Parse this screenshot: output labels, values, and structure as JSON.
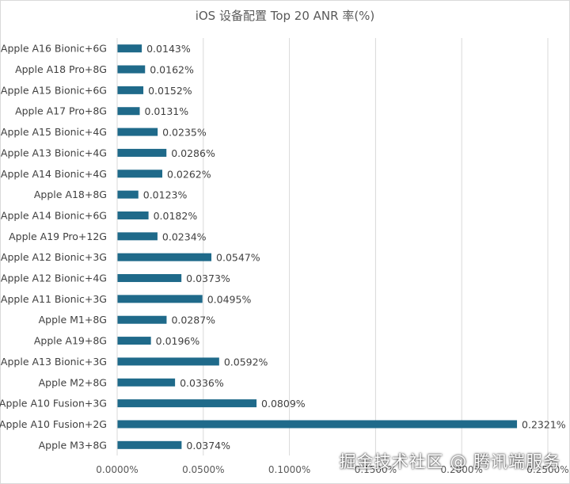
{
  "chart_data": {
    "type": "bar",
    "orientation": "horizontal",
    "title": "iOS 设备配置 Top 20 ANR 率(%)",
    "categories": [
      "Apple A16 Bionic+6G",
      "Apple A18 Pro+8G",
      "Apple A15 Bionic+6G",
      "Apple A17 Pro+8G",
      "Apple A15 Bionic+4G",
      "Apple A13 Bionic+4G",
      "Apple A14 Bionic+4G",
      "Apple A18+8G",
      "Apple A14 Bionic+6G",
      "Apple A19 Pro+12G",
      "Apple A12 Bionic+3G",
      "Apple A12 Bionic+4G",
      "Apple A11 Bionic+3G",
      "Apple M1+8G",
      "Apple A19+8G",
      "Apple A13 Bionic+3G",
      "Apple M2+8G",
      "Apple A10 Fusion+3G",
      "Apple A10 Fusion+2G",
      "Apple M3+8G"
    ],
    "values": [
      0.0143,
      0.0162,
      0.0152,
      0.0131,
      0.0235,
      0.0286,
      0.0262,
      0.0123,
      0.0182,
      0.0234,
      0.0547,
      0.0373,
      0.0495,
      0.0287,
      0.0196,
      0.0592,
      0.0336,
      0.0809,
      0.2321,
      0.0374
    ],
    "value_labels": [
      "0.0143%",
      "0.0162%",
      "0.0152%",
      "0.0131%",
      "0.0235%",
      "0.0286%",
      "0.0262%",
      "0.0123%",
      "0.0182%",
      "0.0234%",
      "0.0547%",
      "0.0373%",
      "0.0495%",
      "0.0287%",
      "0.0196%",
      "0.0592%",
      "0.0336%",
      "0.0809%",
      "0.2321%",
      "0.0374%"
    ],
    "xlim": [
      0,
      0.25
    ],
    "x_ticks": [
      0,
      0.05,
      0.1,
      0.15,
      0.2,
      0.25
    ],
    "x_tick_labels": [
      "0.0000%",
      "0.0500%",
      "0.1000%",
      "0.1500%",
      "0.2000%",
      "0.2500%"
    ],
    "xlabel": "",
    "ylabel": "",
    "grid": "vertical",
    "legend": "none",
    "bar_color": "#1f6a8a",
    "grid_color": "#d9d9d9",
    "text_color": "#404040"
  },
  "watermark": "掘金技术社区 @ 腾讯端服务"
}
